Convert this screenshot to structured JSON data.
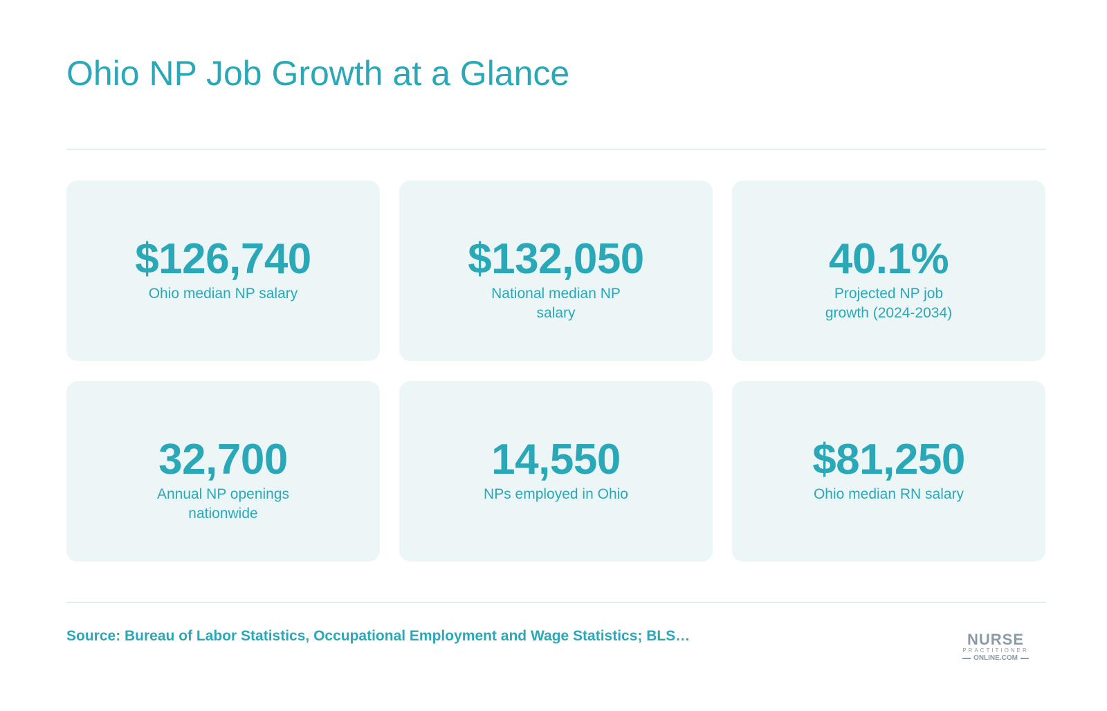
{
  "title": "Ohio NP Job Growth at a Glance",
  "stats": [
    {
      "value": "$126,740",
      "label": "Ohio median NP salary"
    },
    {
      "value": "$132,050",
      "label": "National median NP salary"
    },
    {
      "value": "40.1%",
      "label": "Projected NP job growth (2024-2034)"
    },
    {
      "value": "32,700",
      "label": "Annual NP openings nationwide"
    },
    {
      "value": "14,550",
      "label": "NPs employed in Ohio"
    },
    {
      "value": "$81,250",
      "label": "Ohio median RN salary"
    }
  ],
  "source": "Source: Bureau of Labor Statistics, Occupational Employment and Wage Statistics; BLS…",
  "logo": {
    "line1": "NURSE",
    "line2": "PRACTITIONER",
    "line3": "ONLINE.COM"
  },
  "colors": {
    "accent": "#2aa8b8",
    "card_background": "#edf6f7",
    "divider": "#dff0f3",
    "logo": "#8a9aa6"
  }
}
